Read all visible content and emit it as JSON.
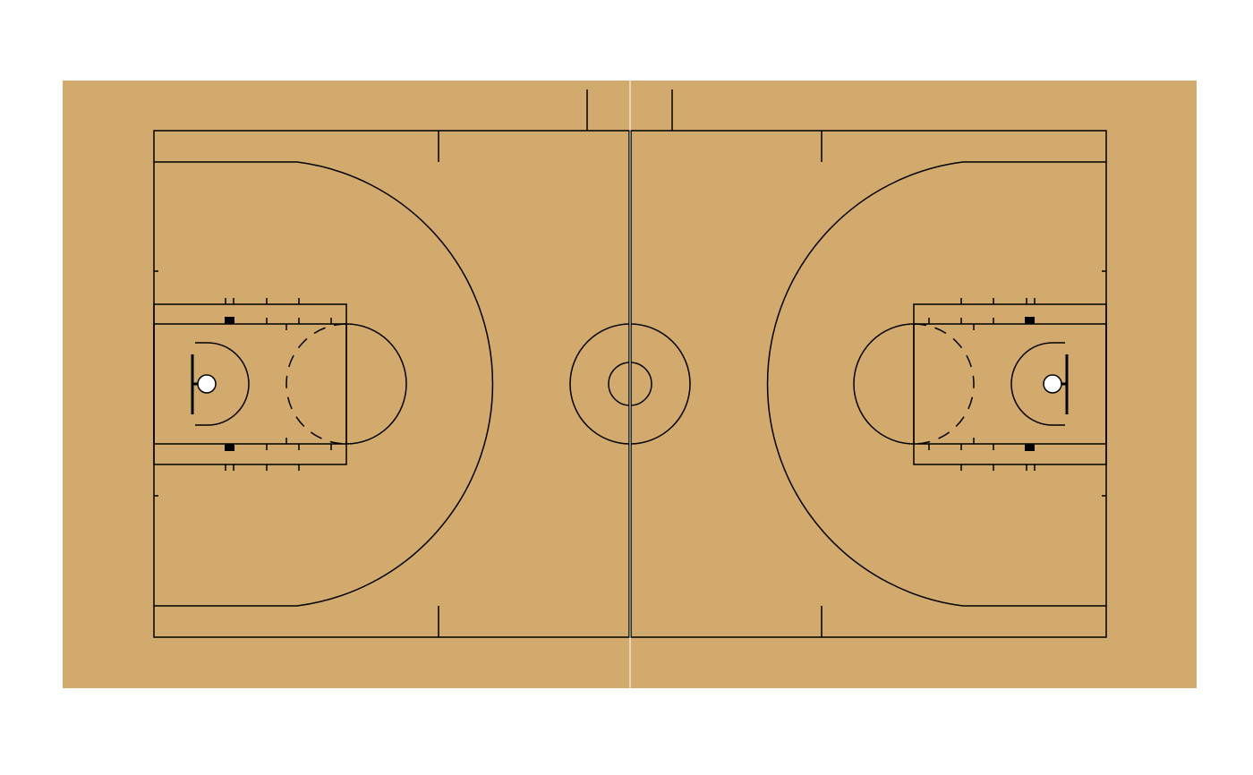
{
  "court": {
    "type": "basketball-court",
    "surface_color": "#d2aa6e",
    "line_color": "#000000",
    "background_color": "#ffffff",
    "rim_color": "#ffffff",
    "center_line_color": "#ffffff"
  }
}
